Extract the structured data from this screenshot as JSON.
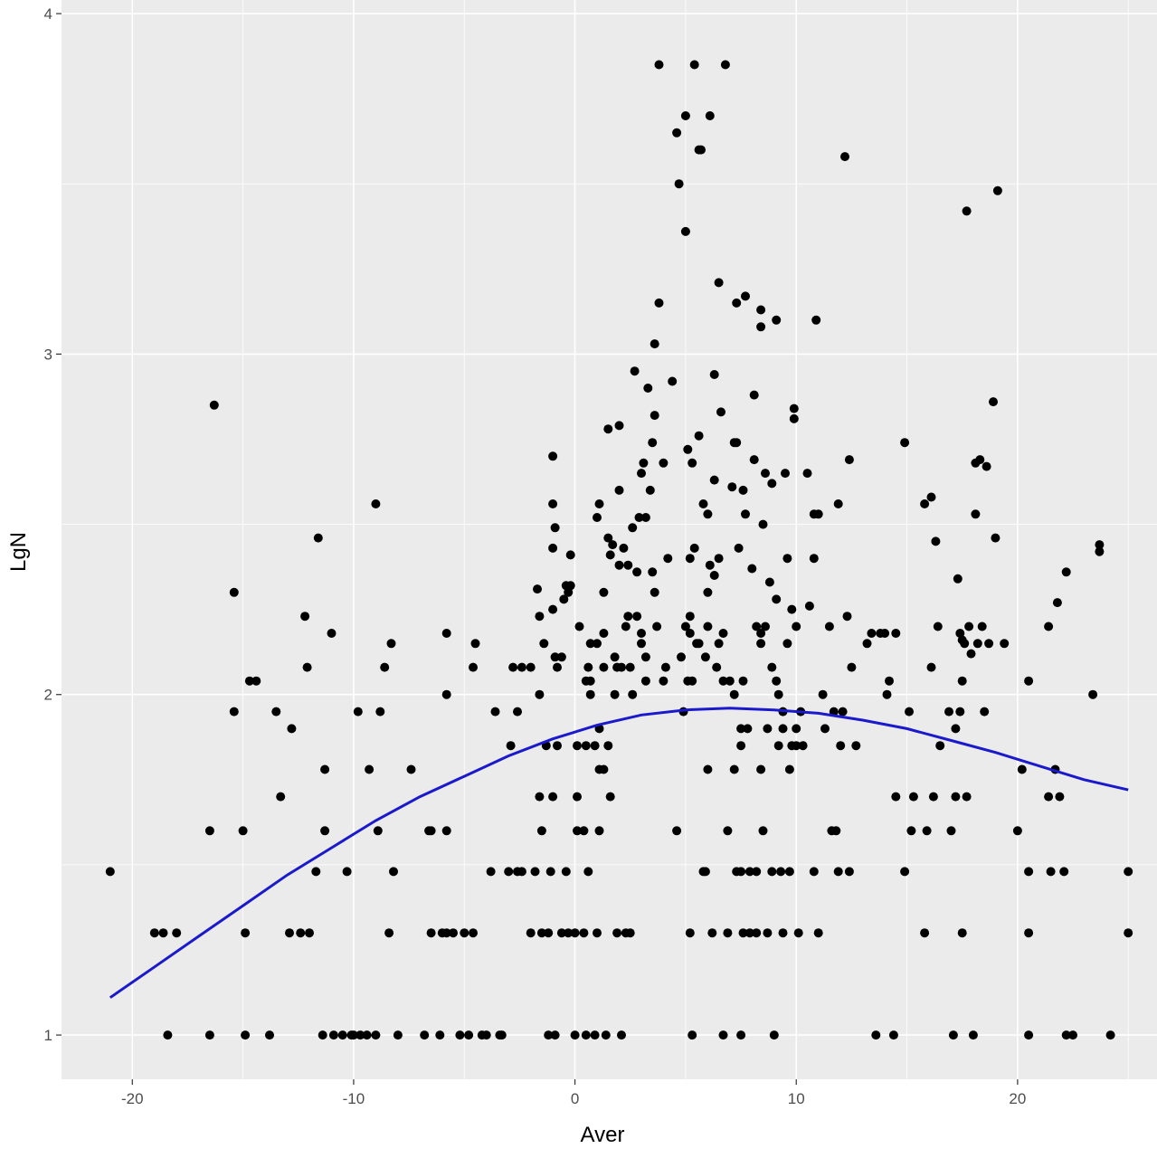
{
  "chart_data": {
    "type": "scatter",
    "title": "",
    "xlabel": "Aver",
    "ylabel": "LgN",
    "xlim": [
      -23.2,
      26.3
    ],
    "ylim": [
      0.87,
      4.04
    ],
    "x_ticks": [
      -20,
      -10,
      0,
      10,
      20
    ],
    "y_ticks": [
      1,
      2,
      3,
      4
    ],
    "x_tick_labels": [
      "-20",
      "-10",
      "0",
      "10",
      "20"
    ],
    "y_tick_labels": [
      "1",
      "2",
      "3",
      "4"
    ],
    "grid": true,
    "legend": "none",
    "colors": {
      "panel_background": "#ebebeb",
      "grid_major": "#ffffff",
      "points": "#000000",
      "smooth_line": "#1a1acc"
    },
    "points": [
      [
        -21.0,
        1.48
      ],
      [
        -19.0,
        1.3
      ],
      [
        -18.6,
        1.3
      ],
      [
        -18.0,
        1.3
      ],
      [
        -18.4,
        1.0
      ],
      [
        -16.5,
        1.0
      ],
      [
        -16.5,
        1.6
      ],
      [
        -16.3,
        2.85
      ],
      [
        -15.4,
        2.3
      ],
      [
        -15.4,
        1.95
      ],
      [
        -15.0,
        1.6
      ],
      [
        -14.9,
        1.3
      ],
      [
        -14.9,
        1.0
      ],
      [
        -14.7,
        2.04
      ],
      [
        -14.4,
        2.04
      ],
      [
        -13.8,
        1.0
      ],
      [
        -13.5,
        1.95
      ],
      [
        -13.3,
        1.7
      ],
      [
        -12.9,
        1.3
      ],
      [
        -12.8,
        1.9
      ],
      [
        -12.4,
        1.3
      ],
      [
        -12.2,
        2.23
      ],
      [
        -12.1,
        2.08
      ],
      [
        -12.0,
        1.3
      ],
      [
        -11.7,
        1.48
      ],
      [
        -11.6,
        2.46
      ],
      [
        -11.4,
        1.0
      ],
      [
        -11.3,
        1.6
      ],
      [
        -11.3,
        1.78
      ],
      [
        -11.0,
        2.18
      ],
      [
        -10.9,
        1.0
      ],
      [
        -10.5,
        1.0
      ],
      [
        -10.3,
        1.48
      ],
      [
        -10.1,
        1.0
      ],
      [
        -10.0,
        1.0
      ],
      [
        -9.8,
        1.95
      ],
      [
        -9.7,
        1.0
      ],
      [
        -9.4,
        1.0
      ],
      [
        -9.3,
        1.78
      ],
      [
        -9.0,
        2.56
      ],
      [
        -9.0,
        1.0
      ],
      [
        -8.9,
        1.6
      ],
      [
        -8.8,
        1.95
      ],
      [
        -8.6,
        2.08
      ],
      [
        -8.4,
        1.3
      ],
      [
        -8.3,
        2.15
      ],
      [
        -8.2,
        1.48
      ],
      [
        -8.0,
        1.0
      ],
      [
        -7.4,
        1.78
      ],
      [
        -6.8,
        1.0
      ],
      [
        -6.6,
        1.6
      ],
      [
        -6.5,
        1.6
      ],
      [
        -6.5,
        1.3
      ],
      [
        -6.1,
        1.0
      ],
      [
        -6.0,
        1.3
      ],
      [
        -5.8,
        1.3
      ],
      [
        -5.8,
        2.0
      ],
      [
        -5.8,
        1.6
      ],
      [
        -5.8,
        2.18
      ],
      [
        -5.5,
        1.3
      ],
      [
        -5.2,
        1.0
      ],
      [
        -5.0,
        1.3
      ],
      [
        -4.8,
        1.0
      ],
      [
        -4.6,
        2.08
      ],
      [
        -4.6,
        1.3
      ],
      [
        -4.5,
        2.15
      ],
      [
        -4.2,
        1.0
      ],
      [
        -4.0,
        1.0
      ],
      [
        -3.8,
        1.48
      ],
      [
        -3.6,
        1.95
      ],
      [
        -3.4,
        1.0
      ],
      [
        -3.3,
        1.0
      ],
      [
        -3.0,
        1.48
      ],
      [
        -2.9,
        1.85
      ],
      [
        -2.8,
        2.08
      ],
      [
        -2.6,
        1.48
      ],
      [
        -2.6,
        1.95
      ],
      [
        -2.4,
        1.48
      ],
      [
        -2.4,
        2.08
      ],
      [
        -2.0,
        2.08
      ],
      [
        -2.0,
        1.3
      ],
      [
        -1.8,
        1.48
      ],
      [
        -1.7,
        2.31
      ],
      [
        -1.6,
        2.0
      ],
      [
        -1.6,
        2.23
      ],
      [
        -1.6,
        1.7
      ],
      [
        -1.5,
        1.6
      ],
      [
        -1.5,
        1.3
      ],
      [
        -1.4,
        2.15
      ],
      [
        -1.3,
        1.85
      ],
      [
        -1.2,
        1.0
      ],
      [
        -1.2,
        1.3
      ],
      [
        -1.1,
        1.48
      ],
      [
        -1.0,
        1.7
      ],
      [
        -1.0,
        2.7
      ],
      [
        -1.0,
        2.43
      ],
      [
        -1.0,
        2.56
      ],
      [
        -1.0,
        2.25
      ],
      [
        -0.9,
        2.11
      ],
      [
        -0.9,
        2.49
      ],
      [
        -0.9,
        1.0
      ],
      [
        -0.8,
        2.08
      ],
      [
        -0.8,
        1.85
      ],
      [
        -0.6,
        2.11
      ],
      [
        -0.6,
        1.3
      ],
      [
        -0.5,
        2.28
      ],
      [
        -0.4,
        2.32
      ],
      [
        -0.4,
        1.48
      ],
      [
        -0.3,
        2.3
      ],
      [
        -0.3,
        1.3
      ],
      [
        -0.2,
        2.41
      ],
      [
        -0.2,
        2.32
      ],
      [
        0.0,
        1.0
      ],
      [
        0.0,
        1.3
      ],
      [
        0.1,
        1.6
      ],
      [
        0.1,
        1.85
      ],
      [
        0.1,
        1.7
      ],
      [
        0.2,
        2.2
      ],
      [
        0.4,
        1.3
      ],
      [
        0.4,
        1.6
      ],
      [
        0.5,
        1.0
      ],
      [
        0.5,
        1.85
      ],
      [
        0.5,
        2.04
      ],
      [
        0.6,
        1.48
      ],
      [
        0.6,
        2.08
      ],
      [
        0.7,
        2.15
      ],
      [
        0.7,
        2.0
      ],
      [
        0.7,
        2.04
      ],
      [
        0.9,
        1.0
      ],
      [
        0.9,
        1.85
      ],
      [
        1.0,
        1.3
      ],
      [
        1.0,
        2.15
      ],
      [
        1.0,
        2.52
      ],
      [
        1.1,
        1.6
      ],
      [
        1.1,
        1.78
      ],
      [
        1.1,
        1.9
      ],
      [
        1.1,
        2.56
      ],
      [
        1.3,
        2.18
      ],
      [
        1.3,
        2.3
      ],
      [
        1.3,
        2.08
      ],
      [
        1.3,
        1.78
      ],
      [
        1.4,
        1.0
      ],
      [
        1.5,
        2.46
      ],
      [
        1.5,
        2.78
      ],
      [
        1.5,
        1.85
      ],
      [
        1.6,
        2.41
      ],
      [
        1.6,
        1.7
      ],
      [
        1.7,
        2.44
      ],
      [
        1.8,
        2.0
      ],
      [
        1.8,
        2.11
      ],
      [
        1.9,
        1.3
      ],
      [
        1.9,
        2.08
      ],
      [
        2.0,
        2.6
      ],
      [
        2.0,
        2.38
      ],
      [
        2.0,
        2.79
      ],
      [
        2.1,
        2.08
      ],
      [
        2.1,
        1.0
      ],
      [
        2.2,
        2.43
      ],
      [
        2.3,
        1.3
      ],
      [
        2.3,
        2.2
      ],
      [
        2.4,
        2.23
      ],
      [
        2.4,
        2.38
      ],
      [
        2.5,
        1.3
      ],
      [
        2.5,
        2.08
      ],
      [
        2.6,
        2.49
      ],
      [
        2.6,
        2.0
      ],
      [
        2.7,
        2.95
      ],
      [
        2.8,
        2.36
      ],
      [
        2.8,
        2.23
      ],
      [
        2.9,
        2.52
      ],
      [
        3.0,
        2.15
      ],
      [
        3.0,
        2.18
      ],
      [
        3.0,
        2.65
      ],
      [
        3.1,
        2.68
      ],
      [
        3.2,
        2.52
      ],
      [
        3.2,
        2.11
      ],
      [
        3.2,
        2.04
      ],
      [
        3.3,
        2.9
      ],
      [
        3.4,
        2.6
      ],
      [
        3.5,
        2.74
      ],
      [
        3.5,
        2.36
      ],
      [
        3.6,
        2.3
      ],
      [
        3.6,
        3.03
      ],
      [
        3.6,
        2.82
      ],
      [
        3.7,
        2.2
      ],
      [
        3.8,
        3.85
      ],
      [
        3.8,
        3.15
      ],
      [
        4.0,
        2.68
      ],
      [
        4.0,
        2.04
      ],
      [
        4.1,
        2.08
      ],
      [
        4.2,
        2.4
      ],
      [
        4.4,
        2.92
      ],
      [
        4.6,
        3.65
      ],
      [
        4.6,
        1.6
      ],
      [
        4.7,
        3.5
      ],
      [
        4.8,
        2.11
      ],
      [
        4.9,
        1.95
      ],
      [
        5.0,
        2.2
      ],
      [
        5.0,
        3.7
      ],
      [
        5.0,
        3.36
      ],
      [
        5.1,
        2.72
      ],
      [
        5.1,
        2.04
      ],
      [
        5.2,
        2.4
      ],
      [
        5.2,
        2.23
      ],
      [
        5.2,
        2.18
      ],
      [
        5.2,
        1.3
      ],
      [
        5.3,
        2.68
      ],
      [
        5.3,
        2.04
      ],
      [
        5.3,
        1.0
      ],
      [
        5.4,
        3.85
      ],
      [
        5.4,
        2.43
      ],
      [
        5.5,
        2.15
      ],
      [
        5.6,
        3.6
      ],
      [
        5.6,
        2.76
      ],
      [
        5.6,
        2.15
      ],
      [
        5.7,
        3.6
      ],
      [
        5.8,
        2.56
      ],
      [
        5.8,
        1.48
      ],
      [
        5.9,
        2.11
      ],
      [
        5.9,
        1.48
      ],
      [
        6.0,
        2.53
      ],
      [
        6.0,
        2.3
      ],
      [
        6.0,
        2.2
      ],
      [
        6.0,
        1.78
      ],
      [
        6.1,
        3.7
      ],
      [
        6.1,
        2.38
      ],
      [
        6.2,
        1.3
      ],
      [
        6.3,
        2.94
      ],
      [
        6.3,
        2.63
      ],
      [
        6.3,
        2.35
      ],
      [
        6.4,
        2.08
      ],
      [
        6.5,
        3.21
      ],
      [
        6.5,
        2.4
      ],
      [
        6.5,
        2.15
      ],
      [
        6.6,
        2.83
      ],
      [
        6.7,
        2.04
      ],
      [
        6.7,
        1.0
      ],
      [
        6.7,
        2.18
      ],
      [
        6.8,
        3.85
      ],
      [
        6.9,
        1.3
      ],
      [
        6.9,
        1.6
      ],
      [
        7.0,
        2.04
      ],
      [
        7.1,
        2.61
      ],
      [
        7.2,
        2.74
      ],
      [
        7.2,
        2.0
      ],
      [
        7.2,
        1.78
      ],
      [
        7.3,
        3.15
      ],
      [
        7.3,
        2.74
      ],
      [
        7.3,
        1.48
      ],
      [
        7.4,
        2.43
      ],
      [
        7.5,
        1.9
      ],
      [
        7.5,
        1.85
      ],
      [
        7.5,
        1.48
      ],
      [
        7.5,
        1.0
      ],
      [
        7.6,
        2.6
      ],
      [
        7.6,
        2.04
      ],
      [
        7.6,
        1.3
      ],
      [
        7.7,
        3.17
      ],
      [
        7.7,
        2.53
      ],
      [
        7.8,
        1.9
      ],
      [
        7.9,
        1.48
      ],
      [
        7.9,
        1.3
      ],
      [
        8.0,
        2.37
      ],
      [
        8.1,
        2.88
      ],
      [
        8.1,
        2.69
      ],
      [
        8.2,
        2.2
      ],
      [
        8.2,
        1.3
      ],
      [
        8.2,
        1.48
      ],
      [
        8.4,
        3.13
      ],
      [
        8.4,
        3.08
      ],
      [
        8.4,
        2.15
      ],
      [
        8.4,
        2.18
      ],
      [
        8.4,
        1.78
      ],
      [
        8.5,
        2.5
      ],
      [
        8.5,
        1.6
      ],
      [
        8.6,
        2.2
      ],
      [
        8.6,
        2.65
      ],
      [
        8.7,
        1.3
      ],
      [
        8.7,
        1.9
      ],
      [
        8.8,
        2.33
      ],
      [
        8.9,
        2.62
      ],
      [
        8.9,
        2.08
      ],
      [
        8.9,
        1.48
      ],
      [
        9.0,
        1.0
      ],
      [
        9.1,
        3.1
      ],
      [
        9.1,
        2.28
      ],
      [
        9.1,
        2.04
      ],
      [
        9.2,
        2.0
      ],
      [
        9.2,
        1.85
      ],
      [
        9.3,
        1.48
      ],
      [
        9.4,
        1.9
      ],
      [
        9.4,
        1.3
      ],
      [
        9.4,
        1.95
      ],
      [
        9.5,
        2.65
      ],
      [
        9.6,
        2.4
      ],
      [
        9.6,
        2.15
      ],
      [
        9.7,
        1.48
      ],
      [
        9.7,
        1.78
      ],
      [
        9.8,
        2.25
      ],
      [
        9.8,
        1.85
      ],
      [
        9.9,
        2.84
      ],
      [
        9.9,
        2.81
      ],
      [
        10.0,
        2.2
      ],
      [
        10.0,
        1.85
      ],
      [
        10.0,
        1.9
      ],
      [
        10.1,
        1.3
      ],
      [
        10.2,
        1.95
      ],
      [
        10.3,
        1.85
      ],
      [
        10.5,
        2.65
      ],
      [
        10.6,
        2.26
      ],
      [
        10.8,
        2.53
      ],
      [
        10.8,
        2.4
      ],
      [
        10.8,
        1.48
      ],
      [
        10.9,
        3.1
      ],
      [
        11.0,
        1.3
      ],
      [
        11.0,
        2.53
      ],
      [
        11.2,
        2.0
      ],
      [
        11.3,
        1.9
      ],
      [
        11.5,
        2.2
      ],
      [
        11.6,
        1.6
      ],
      [
        11.7,
        1.95
      ],
      [
        11.8,
        1.6
      ],
      [
        11.9,
        1.48
      ],
      [
        11.9,
        2.56
      ],
      [
        12.0,
        1.85
      ],
      [
        12.1,
        1.95
      ],
      [
        12.2,
        3.58
      ],
      [
        12.3,
        2.23
      ],
      [
        12.4,
        2.69
      ],
      [
        12.4,
        1.48
      ],
      [
        12.5,
        2.08
      ],
      [
        12.7,
        1.85
      ],
      [
        13.2,
        2.15
      ],
      [
        13.4,
        2.18
      ],
      [
        13.6,
        1.0
      ],
      [
        13.8,
        2.18
      ],
      [
        14.0,
        2.18
      ],
      [
        14.1,
        2.0
      ],
      [
        14.2,
        2.04
      ],
      [
        14.4,
        1.0
      ],
      [
        14.5,
        2.18
      ],
      [
        14.5,
        1.7
      ],
      [
        14.9,
        1.48
      ],
      [
        14.9,
        2.74
      ],
      [
        15.1,
        1.95
      ],
      [
        15.2,
        1.6
      ],
      [
        15.3,
        1.7
      ],
      [
        15.8,
        2.56
      ],
      [
        15.8,
        1.3
      ],
      [
        15.9,
        1.6
      ],
      [
        16.1,
        2.58
      ],
      [
        16.1,
        2.08
      ],
      [
        16.2,
        1.7
      ],
      [
        16.3,
        2.45
      ],
      [
        16.4,
        2.2
      ],
      [
        16.5,
        1.85
      ],
      [
        16.9,
        1.95
      ],
      [
        17.0,
        1.6
      ],
      [
        17.1,
        1.0
      ],
      [
        17.2,
        1.7
      ],
      [
        17.2,
        1.9
      ],
      [
        17.3,
        2.34
      ],
      [
        17.4,
        1.95
      ],
      [
        17.4,
        2.18
      ],
      [
        17.5,
        2.04
      ],
      [
        17.5,
        2.16
      ],
      [
        17.5,
        1.3
      ],
      [
        17.6,
        2.15
      ],
      [
        17.7,
        1.7
      ],
      [
        17.7,
        3.42
      ],
      [
        17.8,
        2.2
      ],
      [
        17.9,
        2.12
      ],
      [
        18.0,
        1.0
      ],
      [
        18.1,
        2.68
      ],
      [
        18.1,
        2.53
      ],
      [
        18.2,
        2.15
      ],
      [
        18.3,
        2.69
      ],
      [
        18.4,
        2.2
      ],
      [
        18.5,
        1.95
      ],
      [
        18.6,
        2.67
      ],
      [
        18.7,
        2.15
      ],
      [
        18.9,
        2.86
      ],
      [
        19.0,
        2.46
      ],
      [
        19.1,
        3.48
      ],
      [
        19.4,
        2.15
      ],
      [
        20.0,
        1.6
      ],
      [
        20.2,
        1.78
      ],
      [
        20.5,
        1.48
      ],
      [
        20.5,
        2.04
      ],
      [
        20.5,
        1.3
      ],
      [
        20.5,
        1.0
      ],
      [
        21.4,
        1.7
      ],
      [
        21.4,
        2.2
      ],
      [
        21.5,
        1.48
      ],
      [
        21.7,
        1.78
      ],
      [
        21.8,
        2.27
      ],
      [
        21.9,
        1.7
      ],
      [
        22.1,
        1.48
      ],
      [
        22.2,
        2.36
      ],
      [
        22.2,
        1.0
      ],
      [
        22.5,
        1.0
      ],
      [
        23.4,
        2.0
      ],
      [
        23.7,
        2.44
      ],
      [
        23.7,
        2.42
      ],
      [
        24.2,
        1.0
      ],
      [
        25.0,
        1.48
      ],
      [
        25.0,
        1.3
      ]
    ],
    "smooth_line": [
      [
        -21.0,
        1.11
      ],
      [
        -19.0,
        1.2
      ],
      [
        -17.0,
        1.29
      ],
      [
        -15.0,
        1.38
      ],
      [
        -13.0,
        1.47
      ],
      [
        -11.0,
        1.55
      ],
      [
        -9.0,
        1.63
      ],
      [
        -7.0,
        1.7
      ],
      [
        -5.0,
        1.76
      ],
      [
        -3.0,
        1.82
      ],
      [
        -1.0,
        1.87
      ],
      [
        1.0,
        1.91
      ],
      [
        3.0,
        1.94
      ],
      [
        5.0,
        1.955
      ],
      [
        7.0,
        1.96
      ],
      [
        9.0,
        1.955
      ],
      [
        11.0,
        1.945
      ],
      [
        13.0,
        1.925
      ],
      [
        15.0,
        1.9
      ],
      [
        17.0,
        1.865
      ],
      [
        19.0,
        1.83
      ],
      [
        21.0,
        1.79
      ],
      [
        23.0,
        1.75
      ],
      [
        25.0,
        1.72
      ]
    ]
  }
}
